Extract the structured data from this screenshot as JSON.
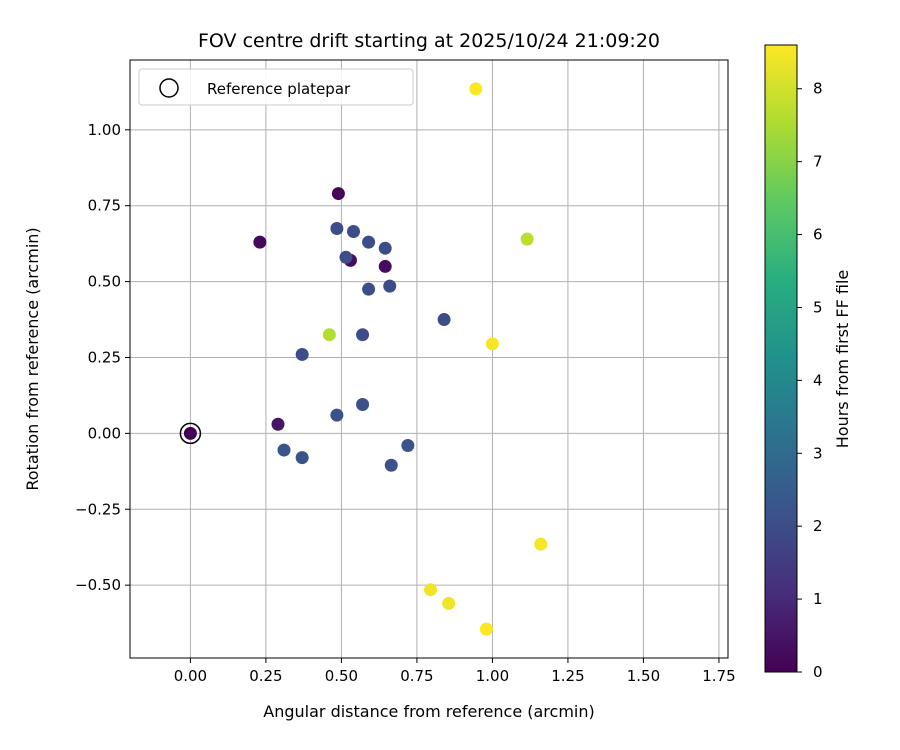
{
  "chart_data": {
    "type": "scatter",
    "title": "FOV centre drift starting at 2025/10/24 21:09:20",
    "xlabel": "Angular distance from reference (arcmin)",
    "ylabel": "Rotation from reference (arcmin)",
    "xlim": [
      -0.2,
      1.78
    ],
    "ylim": [
      -0.74,
      1.23
    ],
    "xticks": [
      0.0,
      0.25,
      0.5,
      0.75,
      1.0,
      1.25,
      1.5,
      1.75
    ],
    "xtick_labels": [
      "0.00",
      "0.25",
      "0.50",
      "0.75",
      "1.00",
      "1.25",
      "1.50",
      "1.75"
    ],
    "yticks": [
      -0.5,
      -0.25,
      0.0,
      0.25,
      0.5,
      0.75,
      1.0
    ],
    "ytick_labels": [
      "−0.50",
      "−0.25",
      "0.00",
      "0.25",
      "0.50",
      "0.75",
      "1.00"
    ],
    "grid": true,
    "legend": {
      "position": "top-left",
      "entries": [
        "Reference platepar"
      ]
    },
    "reference_point": {
      "x": 0.0,
      "y": 0.0,
      "label": "Reference platepar"
    },
    "colorbar": {
      "label": "Hours from first FF file",
      "range": [
        0,
        8.6
      ],
      "ticks": [
        0,
        1,
        2,
        3,
        4,
        5,
        6,
        7,
        8
      ],
      "tick_labels": [
        "0",
        "1",
        "2",
        "3",
        "4",
        "5",
        "6",
        "7",
        "8"
      ],
      "colormap": "viridis"
    },
    "series": [
      {
        "name": "FOV centre drift",
        "points": [
          {
            "x": 0.0,
            "y": 0.0,
            "hours": 0.0
          },
          {
            "x": 0.23,
            "y": 0.63,
            "hours": 0.2
          },
          {
            "x": 0.49,
            "y": 0.79,
            "hours": 0.1
          },
          {
            "x": 0.53,
            "y": 0.57,
            "hours": 0.3
          },
          {
            "x": 0.645,
            "y": 0.55,
            "hours": 0.3
          },
          {
            "x": 0.29,
            "y": 0.03,
            "hours": 0.5
          },
          {
            "x": 0.485,
            "y": 0.675,
            "hours": 2.0
          },
          {
            "x": 0.54,
            "y": 0.665,
            "hours": 2.0
          },
          {
            "x": 0.59,
            "y": 0.63,
            "hours": 2.0
          },
          {
            "x": 0.645,
            "y": 0.61,
            "hours": 2.0
          },
          {
            "x": 0.515,
            "y": 0.58,
            "hours": 2.0
          },
          {
            "x": 0.59,
            "y": 0.475,
            "hours": 2.0
          },
          {
            "x": 0.66,
            "y": 0.485,
            "hours": 2.0
          },
          {
            "x": 0.84,
            "y": 0.375,
            "hours": 2.0
          },
          {
            "x": 0.57,
            "y": 0.325,
            "hours": 2.0
          },
          {
            "x": 0.37,
            "y": 0.26,
            "hours": 2.0
          },
          {
            "x": 0.485,
            "y": 0.06,
            "hours": 2.1
          },
          {
            "x": 0.57,
            "y": 0.095,
            "hours": 2.1
          },
          {
            "x": 0.31,
            "y": -0.055,
            "hours": 2.2
          },
          {
            "x": 0.37,
            "y": -0.08,
            "hours": 2.2
          },
          {
            "x": 0.72,
            "y": -0.04,
            "hours": 2.2
          },
          {
            "x": 0.665,
            "y": -0.105,
            "hours": 2.2
          },
          {
            "x": 0.46,
            "y": 0.325,
            "hours": 7.6
          },
          {
            "x": 1.115,
            "y": 0.64,
            "hours": 7.7
          },
          {
            "x": 1.0,
            "y": 0.295,
            "hours": 8.5
          },
          {
            "x": 0.945,
            "y": 1.135,
            "hours": 8.6
          },
          {
            "x": 1.16,
            "y": -0.365,
            "hours": 8.5
          },
          {
            "x": 0.795,
            "y": -0.515,
            "hours": 8.4
          },
          {
            "x": 0.855,
            "y": -0.56,
            "hours": 8.4
          },
          {
            "x": 0.98,
            "y": -0.645,
            "hours": 8.6
          }
        ]
      }
    ]
  }
}
